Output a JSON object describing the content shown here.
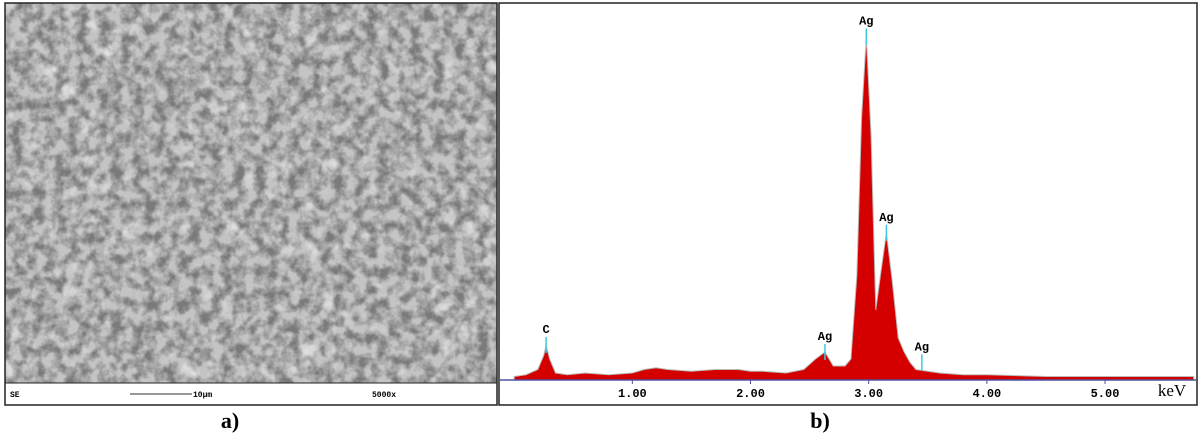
{
  "sem_image": {
    "detector": "SE",
    "scale_bar": "10μm",
    "magnification": "5000x",
    "panel_label": "a)"
  },
  "chart_data": {
    "type": "area",
    "panel_label": "b)",
    "x_label": "keV",
    "x": [
      0.0,
      0.1,
      0.2,
      0.25,
      0.27,
      0.3,
      0.35,
      0.45,
      0.6,
      0.8,
      1.0,
      1.1,
      1.2,
      1.3,
      1.5,
      1.7,
      1.9,
      2.0,
      2.1,
      2.3,
      2.45,
      2.55,
      2.63,
      2.7,
      2.8,
      2.85,
      2.9,
      2.94,
      2.98,
      3.02,
      3.06,
      3.1,
      3.15,
      3.2,
      3.25,
      3.3,
      3.35,
      3.4,
      3.5,
      3.6,
      3.8,
      4.0,
      4.5,
      5.0,
      5.5,
      5.75
    ],
    "values": [
      1,
      1.5,
      3,
      7,
      10,
      6,
      2,
      1.5,
      2,
      1.5,
      2,
      3,
      3.5,
      3,
      2.5,
      3,
      3,
      2.5,
      2.5,
      2,
      3,
      6,
      8,
      4,
      4,
      6,
      30,
      75,
      98,
      70,
      20,
      30,
      42,
      28,
      12,
      8,
      5,
      3,
      2.5,
      2,
      1.5,
      1.5,
      1,
      1,
      1,
      1
    ],
    "color": "#d40000",
    "xlim": [
      -0.12,
      5.77
    ],
    "ylim": [
      0,
      105
    ],
    "xticks": [
      {
        "value": 1,
        "label": "1.00"
      },
      {
        "value": 2,
        "label": "2.00"
      },
      {
        "value": 3,
        "label": "3.00"
      },
      {
        "value": 4,
        "label": "4.00"
      },
      {
        "value": 5,
        "label": "5.00"
      }
    ],
    "annotations": [
      {
        "text": "C",
        "x": 0.27,
        "y": 10
      },
      {
        "text": "Ag",
        "x": 2.63,
        "y": 8
      },
      {
        "text": "Ag",
        "x": 2.98,
        "y": 98
      },
      {
        "text": "Ag",
        "x": 3.15,
        "y": 42
      },
      {
        "text": "Ag",
        "x": 3.45,
        "y": 5
      }
    ]
  }
}
